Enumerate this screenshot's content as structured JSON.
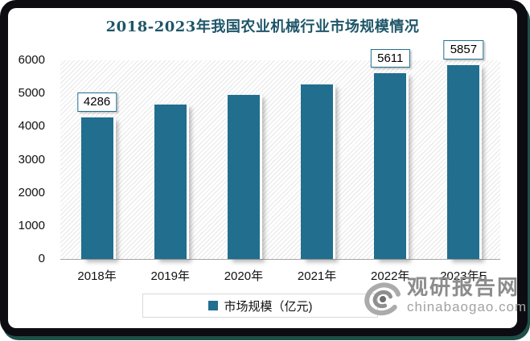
{
  "chart_data": {
    "type": "bar",
    "title": "2018-2023年我国农业机械行业市场规模情况",
    "categories": [
      "2018年",
      "2019年",
      "2020年",
      "2021年",
      "2022年",
      "2023年E"
    ],
    "values": [
      4286,
      4670,
      4960,
      5270,
      5611,
      5857
    ],
    "data_labels": [
      "4286",
      null,
      null,
      null,
      "5611",
      "5857"
    ],
    "series_name": "市场规模（亿元)",
    "xlabel": "",
    "ylabel": "",
    "ylim": [
      0,
      6000
    ],
    "y_ticks": [
      0,
      1000,
      2000,
      3000,
      4000,
      5000,
      6000
    ],
    "grid": false,
    "legend_position": "bottom",
    "plot_background": "diagonal-hatch"
  },
  "legend": {
    "label": "市场规模（亿元)"
  },
  "watermark": {
    "name": "观研报告网",
    "domain": "chinabaogao.com",
    "logo": "swirl-eye-logo"
  },
  "colors": {
    "bar": "#216E8F",
    "title": "#1E5568",
    "frame": "#0C0C12",
    "frame_shadow": "#1E5048",
    "axis_line": "#A6A6A6",
    "hatch": "#E7E7E7",
    "legend_border": "#D9D9D9",
    "watermark": "#8C8C8C",
    "watermark_light": "#A2A2A2"
  }
}
